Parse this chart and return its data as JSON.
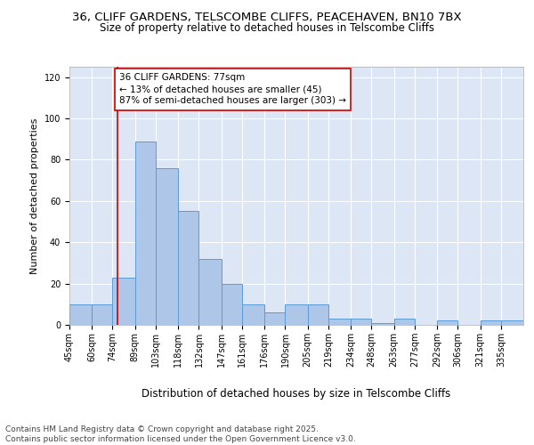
{
  "title": "36, CLIFF GARDENS, TELSCOMBE CLIFFS, PEACEHAVEN, BN10 7BX",
  "subtitle": "Size of property relative to detached houses in Telscombe Cliffs",
  "xlabel": "Distribution of detached houses by size in Telscombe Cliffs",
  "ylabel": "Number of detached properties",
  "categories": [
    "45sqm",
    "60sqm",
    "74sqm",
    "89sqm",
    "103sqm",
    "118sqm",
    "132sqm",
    "147sqm",
    "161sqm",
    "176sqm",
    "190sqm",
    "205sqm",
    "219sqm",
    "234sqm",
    "248sqm",
    "263sqm",
    "277sqm",
    "292sqm",
    "306sqm",
    "321sqm",
    "335sqm"
  ],
  "bin_edges": [
    45,
    60,
    74,
    89,
    103,
    118,
    132,
    147,
    161,
    176,
    190,
    205,
    219,
    234,
    248,
    263,
    277,
    292,
    306,
    321,
    335,
    350
  ],
  "bar_heights": [
    10,
    10,
    23,
    89,
    76,
    55,
    32,
    20,
    10,
    6,
    10,
    10,
    3,
    3,
    1,
    3,
    0,
    2,
    0,
    2,
    2
  ],
  "bar_color": "#aec6e8",
  "bar_edge_color": "#5b9bd5",
  "vline_x": 77,
  "vline_color": "#cc0000",
  "annotation_text": "36 CLIFF GARDENS: 77sqm\n← 13% of detached houses are smaller (45)\n87% of semi-detached houses are larger (303) →",
  "annotation_box_color": "#ffffff",
  "annotation_box_edge": "#cc0000",
  "ylim": [
    0,
    125
  ],
  "yticks": [
    0,
    20,
    40,
    60,
    80,
    100,
    120
  ],
  "bg_color": "#dce6f5",
  "footer": "Contains HM Land Registry data © Crown copyright and database right 2025.\nContains public sector information licensed under the Open Government Licence v3.0.",
  "title_fontsize": 9.5,
  "subtitle_fontsize": 8.5,
  "xlabel_fontsize": 8.5,
  "ylabel_fontsize": 8,
  "tick_fontsize": 7,
  "footer_fontsize": 6.5,
  "annotation_fontsize": 7.5
}
